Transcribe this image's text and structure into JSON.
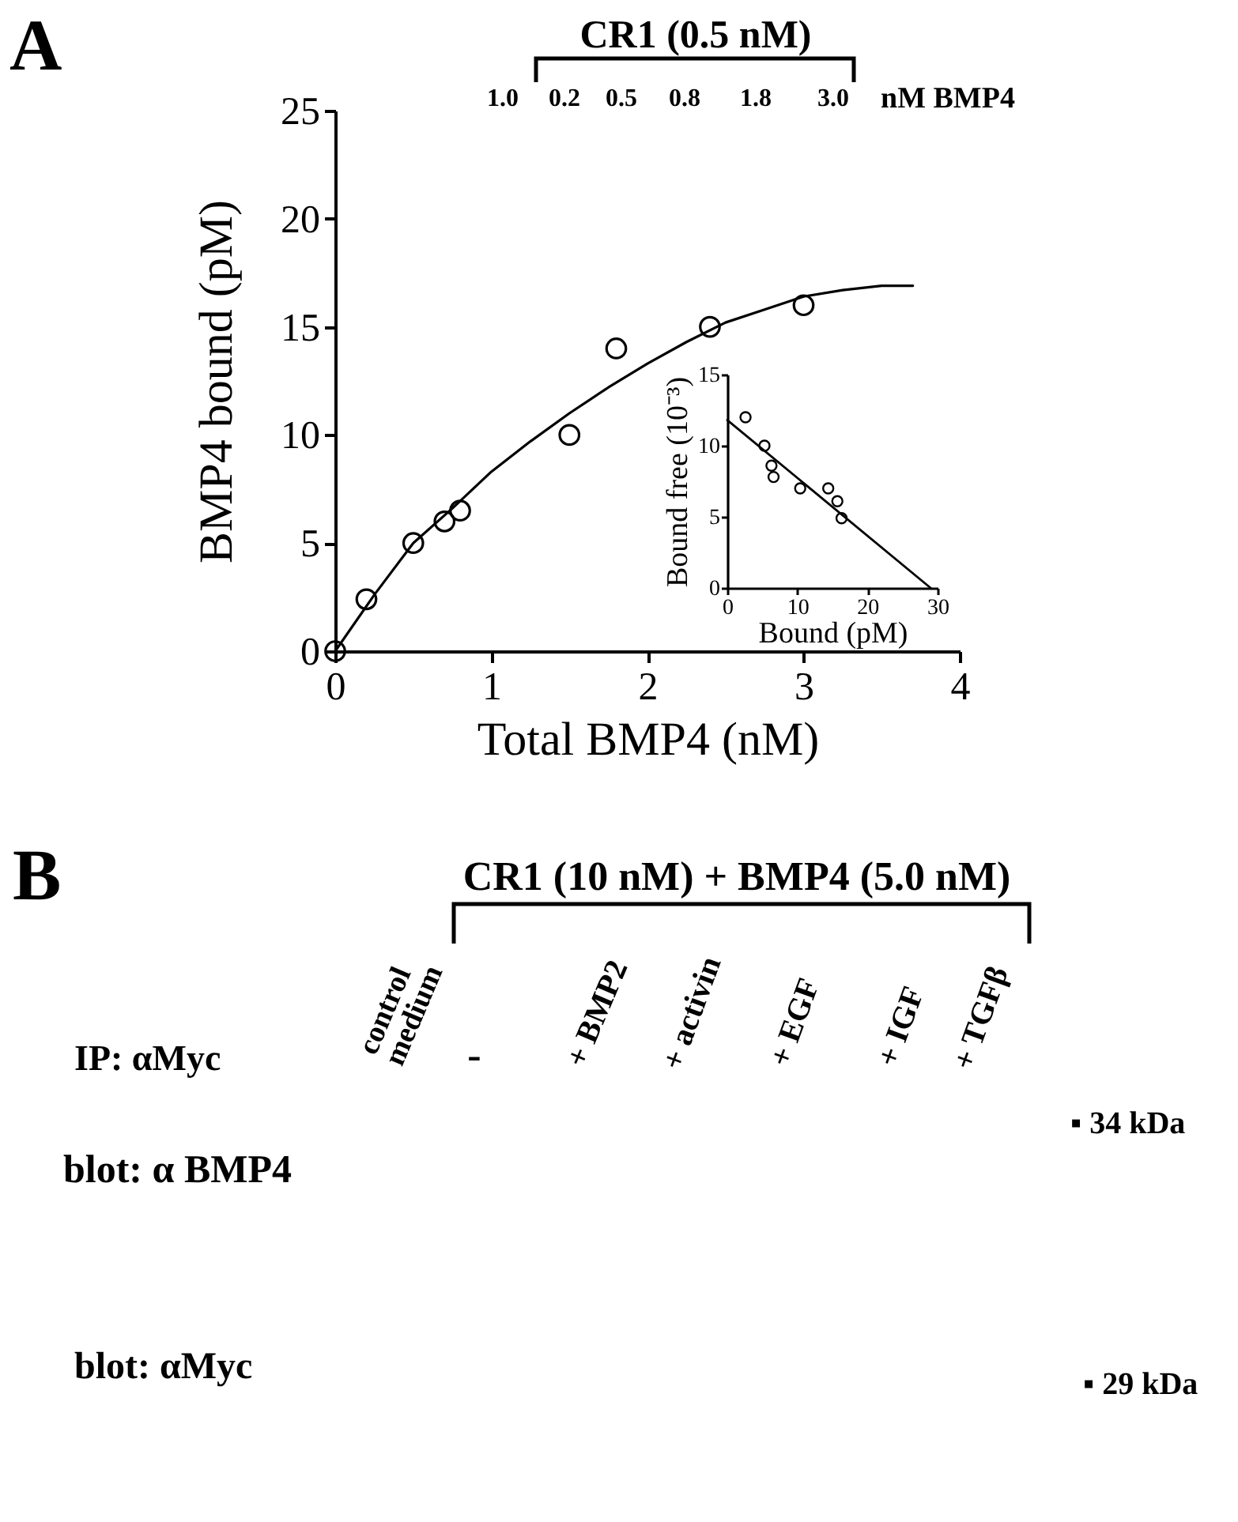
{
  "chart_data": [
    {
      "type": "scatter",
      "xlabel": "Total BMP4 (nM)",
      "ylabel": "BMP4 bound (pM)",
      "xlim": [
        0,
        4
      ],
      "ylim": [
        0,
        25
      ],
      "xticks": [
        0,
        1,
        2,
        3,
        4
      ],
      "yticks": [
        0,
        5,
        10,
        15,
        20,
        25
      ],
      "series": [
        {
          "type": "scatter",
          "color": "#000000",
          "marker": "circle",
          "x": [
            0,
            0.2,
            0.5,
            0.7,
            0.8,
            1.5,
            1.8,
            2.4,
            3.0
          ],
          "values": [
            0,
            2.4,
            5,
            6,
            6.5,
            10,
            14,
            15,
            16
          ]
        },
        {
          "type": "line",
          "color": "#000000",
          "marker": "none",
          "x": [
            0,
            0.25,
            0.5,
            0.75,
            1,
            1.25,
            1.5,
            1.75,
            2,
            2.25,
            2.5,
            2.75,
            3,
            3.25,
            3.5,
            3.7
          ],
          "values": [
            0,
            2.6,
            5.0,
            6.6,
            8.3,
            9.7,
            11.0,
            12.2,
            13.3,
            14.3,
            15.2,
            15.8,
            16.4,
            16.7,
            16.9,
            16.9
          ]
        }
      ],
      "annotations": [
        "A",
        "CR1 (0.5 nM)",
        "1.0",
        "0.2",
        "0.5",
        "0.8",
        "1.8",
        "3.0",
        "nM BMP4"
      ]
    },
    {
      "type": "scatter",
      "xlabel": "Bound (pM)",
      "ylabel": "Bound free (10⁻³)",
      "xlim": [
        0,
        30
      ],
      "ylim": [
        0,
        15
      ],
      "xticks": [
        0,
        10,
        20,
        30
      ],
      "yticks": [
        0,
        5,
        10,
        15
      ],
      "series": [
        {
          "type": "scatter",
          "color": "#000000",
          "marker": "circle",
          "x": [
            2.6,
            5.3,
            6.3,
            6.6,
            10.4,
            14.4,
            15.7,
            16.3
          ],
          "values": [
            12.0,
            10.0,
            8.6,
            7.8,
            7.0,
            7.0,
            6.1,
            4.9
          ]
        },
        {
          "type": "line",
          "color": "#000000",
          "marker": "none",
          "x": [
            0,
            29
          ],
          "values": [
            11.8,
            0
          ]
        }
      ]
    },
    {
      "type": "other",
      "annotations": [
        "B",
        "CR1 (10 nM) + BMP4 (5.0 nM)",
        "control medium",
        "-",
        "+ BMP2",
        "+ activin",
        "+ EGF",
        "+ IGF",
        "+ TGFβ",
        "IP: αMyc",
        "blot: α BMP4",
        "blot: αMyc",
        "▪ 34 kDa",
        "▪ 29 kDa"
      ]
    }
  ]
}
